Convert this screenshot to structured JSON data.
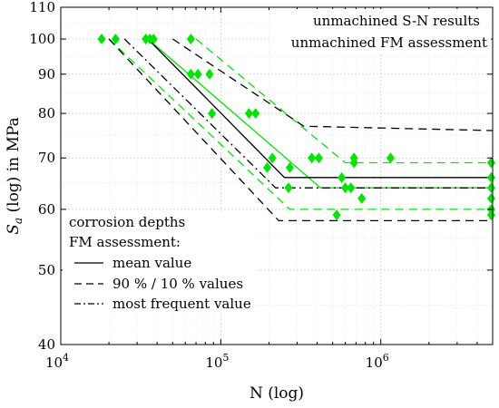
{
  "chart_data": {
    "type": "line",
    "xscale": "log",
    "yscale": "log",
    "xlim": [
      10000,
      5000000
    ],
    "ylim": [
      40,
      110
    ],
    "x_ticks": [
      {
        "value": 10000,
        "base": "10",
        "exp": "4"
      },
      {
        "value": 100000,
        "base": "10",
        "exp": "5"
      },
      {
        "value": 1000000,
        "base": "10",
        "exp": "6"
      }
    ],
    "y_ticks": [
      {
        "value": 40,
        "label": "40"
      },
      {
        "value": 50,
        "label": "50"
      },
      {
        "value": 60,
        "label": "60"
      },
      {
        "value": 70,
        "label": "70"
      },
      {
        "value": 80,
        "label": "80"
      },
      {
        "value": 90,
        "label": "90"
      },
      {
        "value": 100,
        "label": "100"
      },
      {
        "value": 110,
        "label": "110"
      }
    ],
    "xlabel": "N (log)",
    "ylabel_main": "S",
    "ylabel_sub": "a",
    "ylabel_rest": " (log) in MPa",
    "grid": true,
    "colors": {
      "sn": "#00e600",
      "fm": "#000000"
    },
    "legend_top": {
      "placement": "top-right",
      "entries": [
        "unmachined S-N results",
        "unmachined FM assessment"
      ]
    },
    "legend_bottom": {
      "placement": "bottom-left",
      "title_lines": [
        "corrosion depths",
        "FM assessment:"
      ],
      "entries": [
        {
          "label": "mean value",
          "dash": "solid"
        },
        {
          "label": "90 % / 10 % values",
          "dash": "dashed"
        },
        {
          "label": "most frequent value",
          "dash": "dashdot"
        }
      ]
    },
    "series": [
      {
        "group": "sn",
        "type": "scatter",
        "marker": "diamond",
        "points": [
          [
            18000,
            100
          ],
          [
            22000,
            100
          ],
          [
            34000,
            100
          ],
          [
            36000,
            100
          ],
          [
            38000,
            100
          ],
          [
            65000,
            100
          ],
          [
            65000,
            90
          ],
          [
            72000,
            90
          ],
          [
            85000,
            90
          ],
          [
            88000,
            80
          ],
          [
            150000,
            80
          ],
          [
            165000,
            80
          ],
          [
            195000,
            68
          ],
          [
            210000,
            70
          ],
          [
            270000,
            68
          ],
          [
            265000,
            64
          ],
          [
            370000,
            70
          ],
          [
            410000,
            70
          ],
          [
            530000,
            59
          ],
          [
            570000,
            66
          ],
          [
            600000,
            64
          ],
          [
            650000,
            64
          ],
          [
            680000,
            70
          ],
          [
            680000,
            69
          ],
          [
            760000,
            62
          ],
          [
            1150000,
            70
          ],
          [
            4900000,
            69
          ],
          [
            4900000,
            66
          ],
          [
            4900000,
            64
          ],
          [
            4900000,
            62
          ],
          [
            4900000,
            60
          ],
          [
            4900000,
            59
          ]
        ]
      },
      {
        "group": "sn",
        "type": "line",
        "dash": "solid",
        "points": [
          [
            35000,
            100
          ],
          [
            420000,
            64
          ],
          [
            5000000,
            64
          ]
        ]
      },
      {
        "group": "sn",
        "type": "line",
        "dash": "dashed",
        "points": [
          [
            70000,
            100
          ],
          [
            600000,
            69
          ],
          [
            5000000,
            69
          ]
        ]
      },
      {
        "group": "sn",
        "type": "line",
        "dash": "dashed",
        "points": [
          [
            20000,
            100
          ],
          [
            270000,
            60
          ],
          [
            5000000,
            60
          ]
        ]
      },
      {
        "group": "fm",
        "type": "line",
        "dash": "solid",
        "points": [
          [
            35000,
            100
          ],
          [
            250000,
            66
          ],
          [
            5000000,
            66
          ]
        ]
      },
      {
        "group": "fm",
        "type": "line",
        "dash": "dashed",
        "points": [
          [
            50000,
            100
          ],
          [
            330000,
            77
          ],
          [
            5000000,
            76
          ]
        ]
      },
      {
        "group": "fm",
        "type": "line",
        "dash": "dashed",
        "points": [
          [
            20000,
            100
          ],
          [
            230000,
            58
          ],
          [
            5000000,
            58
          ]
        ]
      },
      {
        "group": "fm",
        "type": "line",
        "dash": "dashdot",
        "points": [
          [
            25000,
            100
          ],
          [
            220000,
            64
          ],
          [
            5000000,
            64
          ]
        ]
      }
    ]
  }
}
